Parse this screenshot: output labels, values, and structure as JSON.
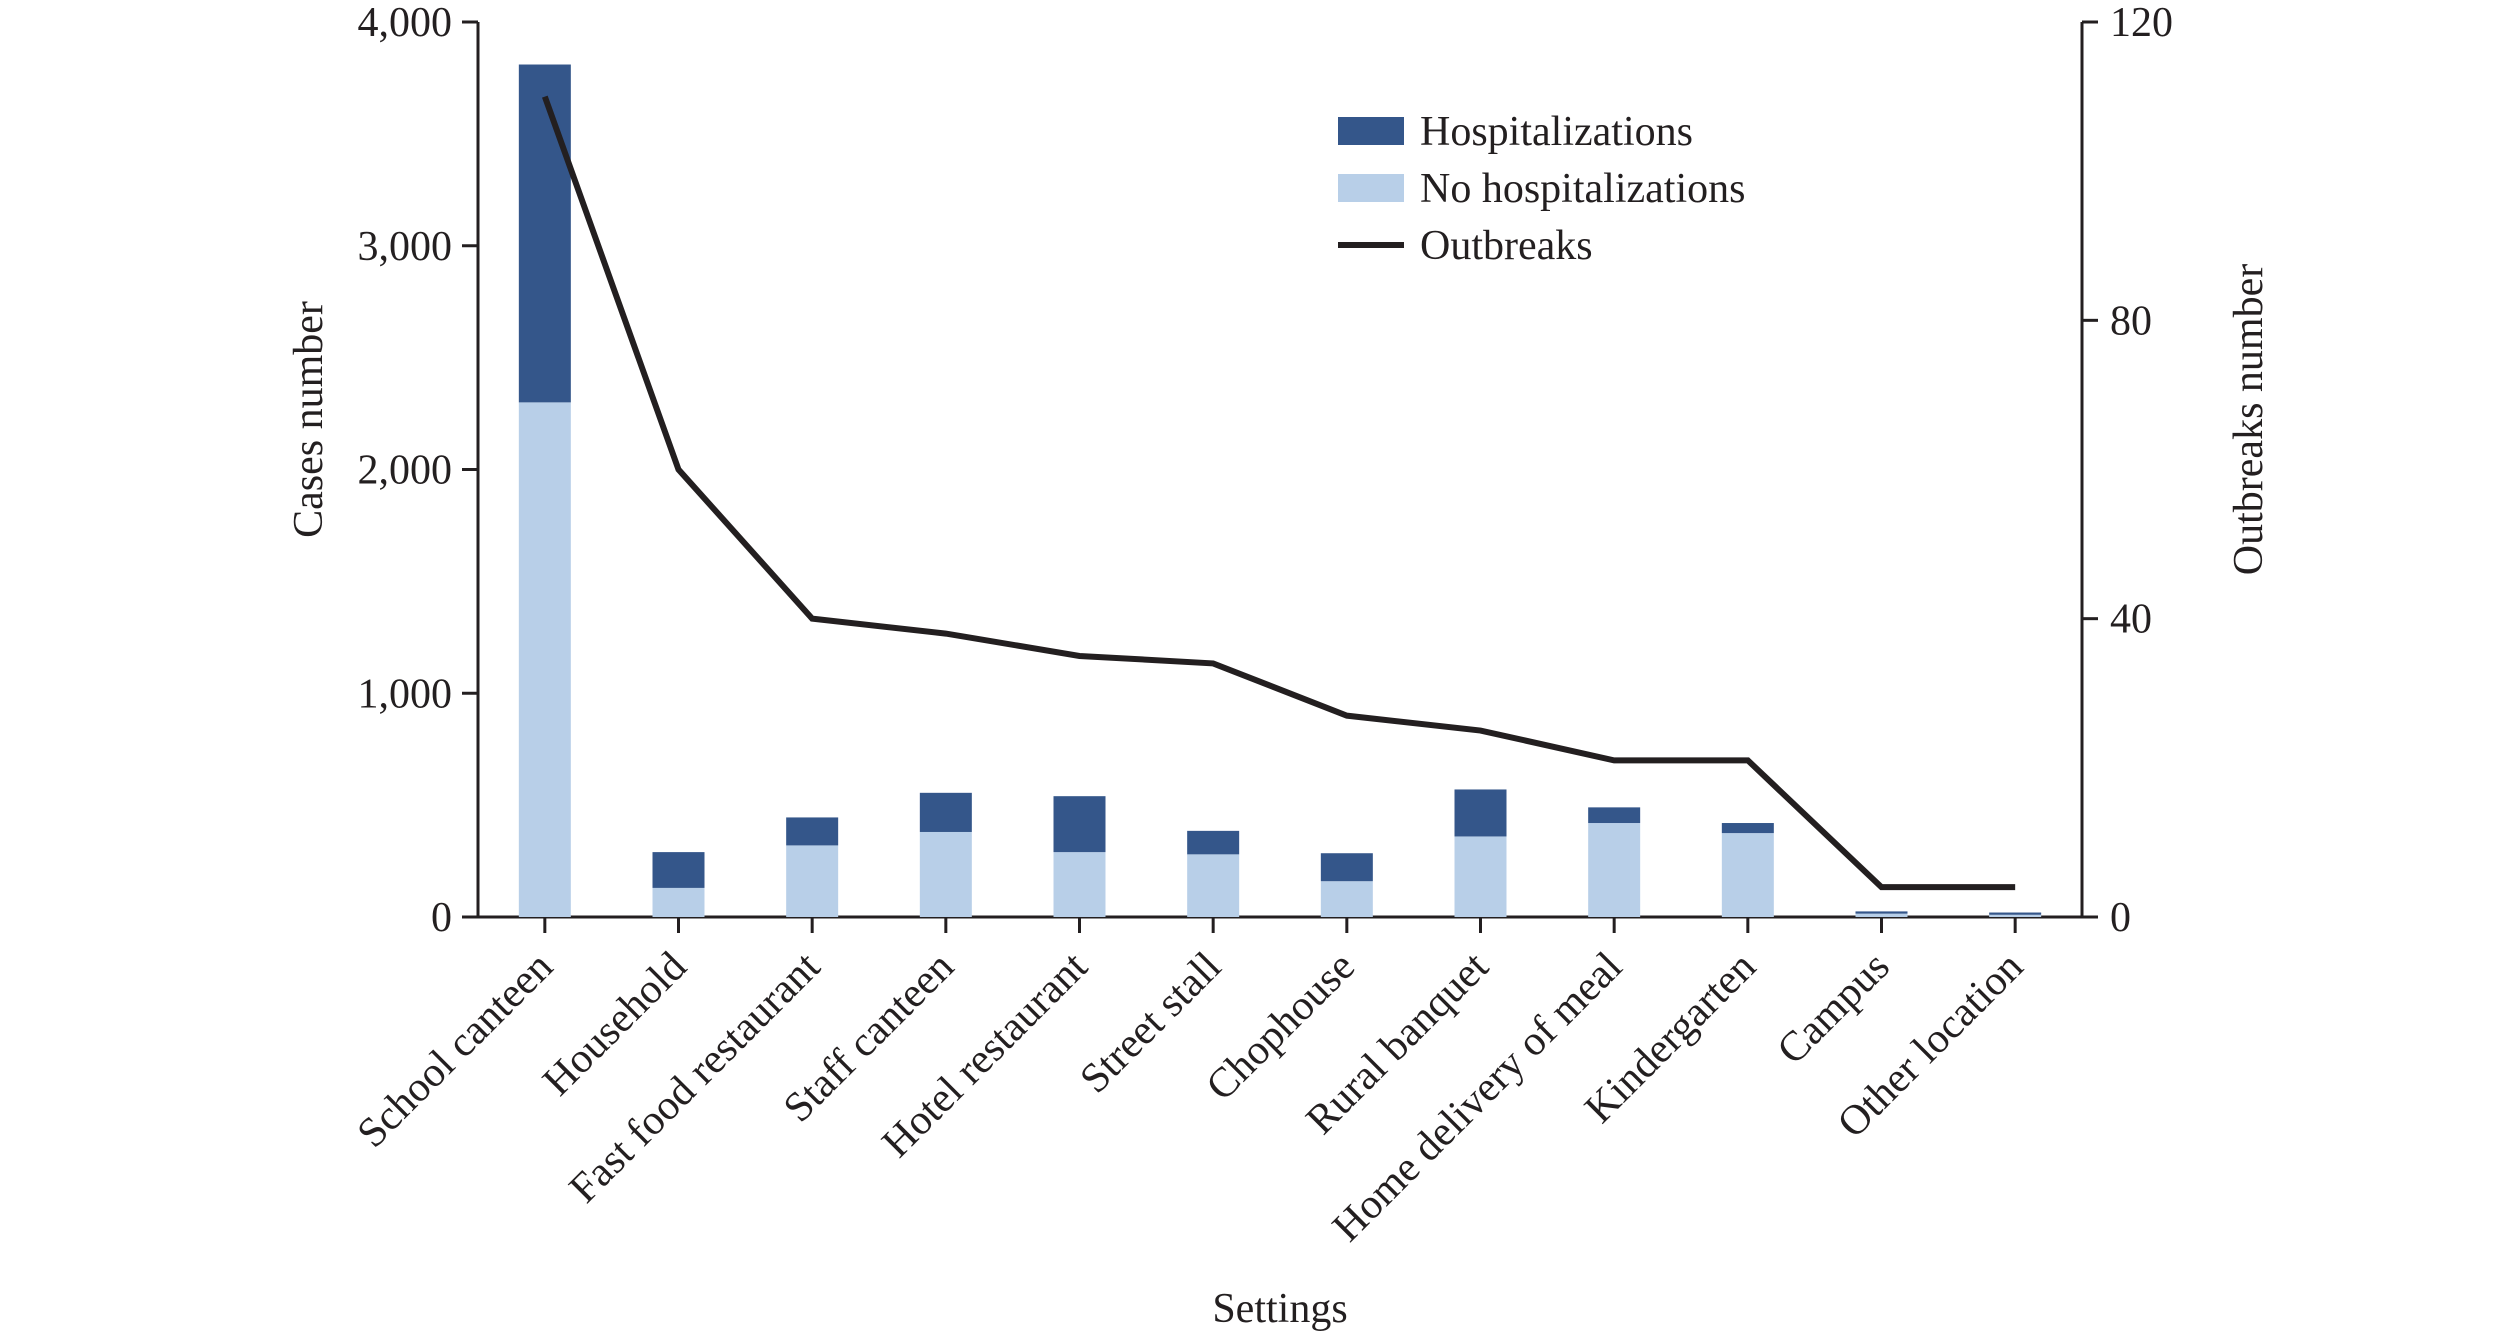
{
  "chart_data": {
    "type": "bar",
    "stacked": true,
    "categories": [
      "School canteen",
      "Household",
      "Fast food restaurant",
      "Staff canteen",
      "Hotel restaurant",
      "Street stall",
      "Chophouse",
      "Rural banquet",
      "Home delivery of meal",
      "Kindergarten",
      "Campus",
      "Other location"
    ],
    "series": [
      {
        "name": "No hospitalizations",
        "type": "bar",
        "axis": "left",
        "color": "#b8cfe8",
        "values": [
          2300,
          130,
          320,
          380,
          290,
          280,
          160,
          360,
          420,
          375,
          15,
          10
        ]
      },
      {
        "name": "Hospitalizations",
        "type": "bar",
        "axis": "left",
        "color": "#34568a",
        "values": [
          1510,
          160,
          125,
          175,
          250,
          105,
          125,
          210,
          70,
          45,
          10,
          10
        ]
      },
      {
        "name": "Outbreaks",
        "type": "line",
        "axis": "right",
        "color": "#231f20",
        "values": [
          110,
          60,
          40,
          38,
          35,
          34,
          27,
          25,
          21,
          21,
          4,
          4
        ]
      }
    ],
    "y_left": {
      "label": "Cases number",
      "lim": [
        0,
        4000
      ],
      "ticks": [
        0,
        1000,
        2000,
        3000,
        4000
      ],
      "tick_labels": [
        "0",
        "1,000",
        "2,000",
        "3,000",
        "4,000"
      ]
    },
    "y_right": {
      "label": "Outbreaks number",
      "lim": [
        0,
        120
      ],
      "ticks": [
        0,
        40,
        80,
        120
      ],
      "tick_labels": [
        "0",
        "40",
        "80",
        "120"
      ]
    },
    "xlabel": "Settings",
    "legend": {
      "placement": "top-center",
      "entries": [
        "Hospitalizations",
        "No hospitalizations",
        "Outbreaks"
      ]
    },
    "grid": false
  }
}
